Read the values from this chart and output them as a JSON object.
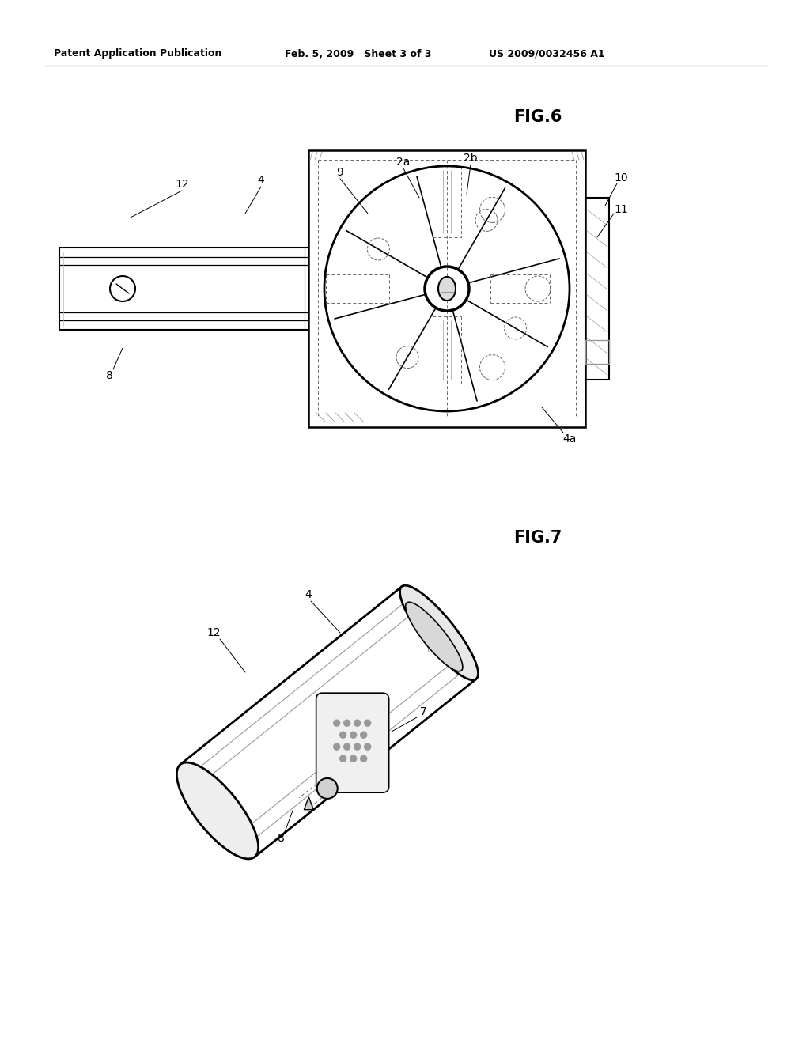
{
  "background_color": "#ffffff",
  "header_left": "Patent Application Publication",
  "header_mid": "Feb. 5, 2009   Sheet 3 of 3",
  "header_right": "US 2009/0032456 A1",
  "fig6_label": "FIG.6",
  "fig7_label": "FIG.7",
  "lc": "#000000",
  "dc": "#666666",
  "lgray": "#bbbbbb",
  "mgray": "#999999"
}
